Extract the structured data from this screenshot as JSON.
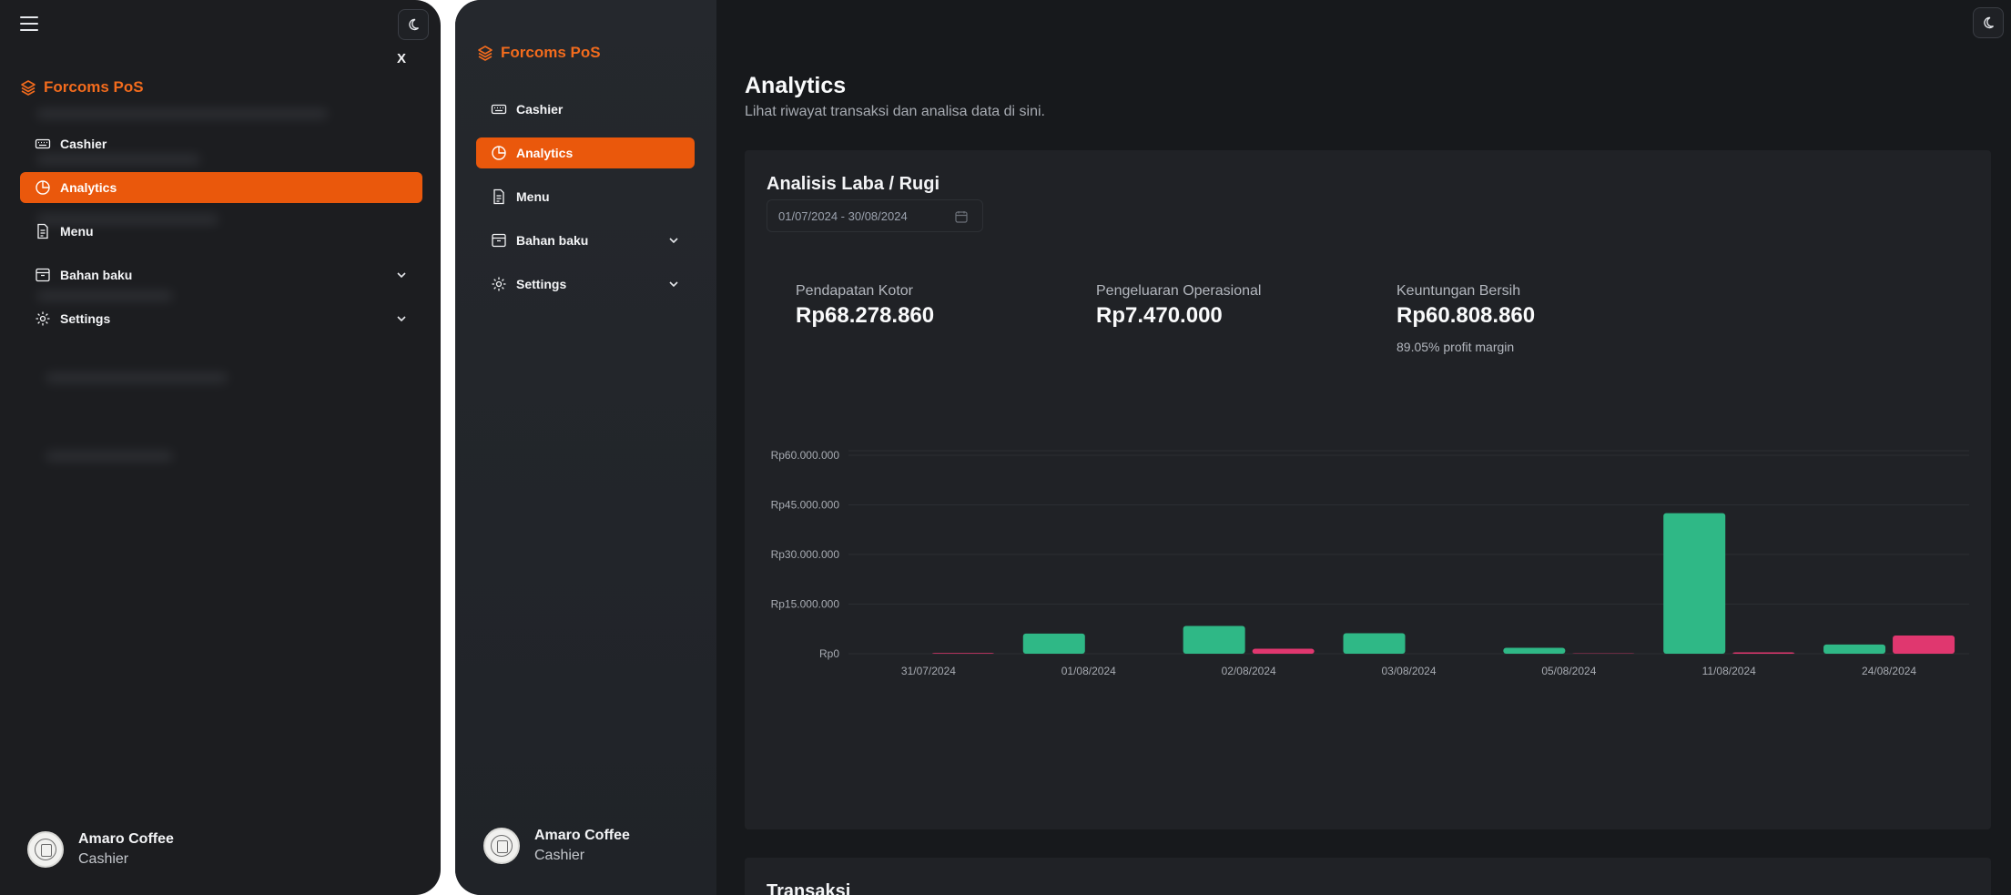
{
  "app": {
    "brand": "Forcoms PoS",
    "close_label": "X"
  },
  "nav": [
    {
      "label": "Cashier",
      "icon": "keyboard-icon",
      "active": false,
      "expandable": false
    },
    {
      "label": "Analytics",
      "icon": "pie-chart-icon",
      "active": true,
      "expandable": false
    },
    {
      "label": "Menu",
      "icon": "document-icon",
      "active": false,
      "expandable": false
    },
    {
      "label": "Bahan baku",
      "icon": "archive-icon",
      "active": false,
      "expandable": true
    },
    {
      "label": "Settings",
      "icon": "gear-icon",
      "active": false,
      "expandable": true
    }
  ],
  "user": {
    "name": "Amaro Coffee",
    "role": "Cashier"
  },
  "page": {
    "title": "Analytics",
    "subtitle": "Lihat riwayat transaksi dan analisa data di sini."
  },
  "profit_loss": {
    "title": "Analisis Laba / Rugi",
    "date_range": "01/07/2024 - 30/08/2024",
    "gross_label": "Pendapatan Kotor",
    "gross_value": "Rp68.278.860",
    "opex_label": "Pengeluaran Operasional",
    "opex_value": "Rp7.470.000",
    "net_label": "Keuntungan Bersih",
    "net_value": "Rp60.808.860",
    "margin_note": "89.05% profit margin"
  },
  "colors": {
    "accent": "#ea580c",
    "income": "#2fb886",
    "expense": "#e0376f"
  },
  "chart_data": {
    "type": "bar",
    "categories": [
      "31/07/2024",
      "01/08/2024",
      "02/08/2024",
      "03/08/2024",
      "05/08/2024",
      "11/08/2024",
      "24/08/2024"
    ],
    "series": [
      {
        "values": [
          0,
          6100000,
          8400000,
          6200000,
          1800000,
          42500000,
          2800000
        ]
      },
      {
        "values": [
          200000,
          0,
          1500000,
          0,
          100000,
          400000,
          5500000
        ]
      }
    ],
    "yticks": [
      "Rp0",
      "Rp15.000.000",
      "Rp30.000.000",
      "Rp45.000.000",
      "Rp60.000.000"
    ],
    "ylim": [
      0,
      60000000
    ],
    "grid": true
  },
  "transactions": {
    "title": "Transaksi"
  }
}
